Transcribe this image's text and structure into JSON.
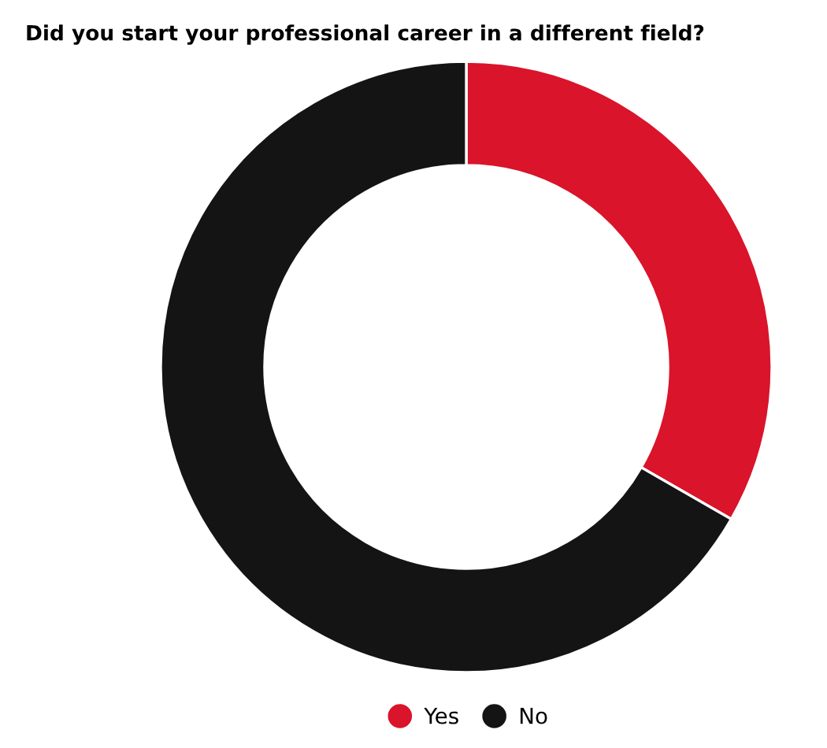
{
  "chart_data": {
    "type": "donut",
    "title": "Did you start your professional career in a different field?",
    "categories": [
      "Yes",
      "No"
    ],
    "values": [
      33.3,
      66.7
    ],
    "colors": [
      "#d9142b",
      "#141414"
    ],
    "legend": "bottom"
  }
}
